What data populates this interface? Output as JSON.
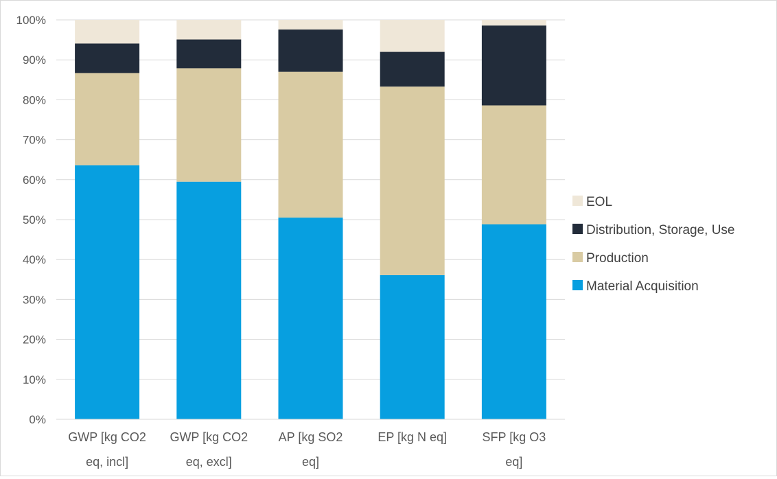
{
  "chart_data": {
    "type": "bar",
    "stacked": "percent",
    "categories": [
      [
        "GWP [kg CO2",
        "eq, incl]"
      ],
      [
        "GWP [kg CO2",
        "eq, excl]"
      ],
      [
        "AP [kg SO2",
        "eq]"
      ],
      [
        "EP [kg N eq]"
      ],
      [
        "SFP [kg O3",
        "eq]"
      ]
    ],
    "series": [
      {
        "name": "Material Acquisition",
        "color": "#079fe0",
        "values": [
          63.6,
          59.5,
          50.5,
          36.1,
          48.8
        ]
      },
      {
        "name": "Production",
        "color": "#d9cba3",
        "values": [
          23.1,
          28.4,
          36.5,
          47.2,
          29.8
        ]
      },
      {
        "name": "Distribution, Storage, Use",
        "color": "#222c3a",
        "values": [
          7.4,
          7.2,
          10.6,
          8.7,
          20.0
        ]
      },
      {
        "name": "EOL",
        "color": "#efe7d8",
        "values": [
          5.9,
          4.9,
          2.4,
          8.0,
          1.4
        ]
      }
    ],
    "ylim": [
      0,
      100
    ],
    "yticks": [
      "0%",
      "10%",
      "20%",
      "30%",
      "40%",
      "50%",
      "60%",
      "70%",
      "80%",
      "90%",
      "100%"
    ],
    "grid": true,
    "legend_position": "right",
    "legend_order": [
      "EOL",
      "Distribution, Storage, Use",
      "Production",
      "Material Acquisition"
    ],
    "title": "",
    "xlabel": "",
    "ylabel": ""
  }
}
